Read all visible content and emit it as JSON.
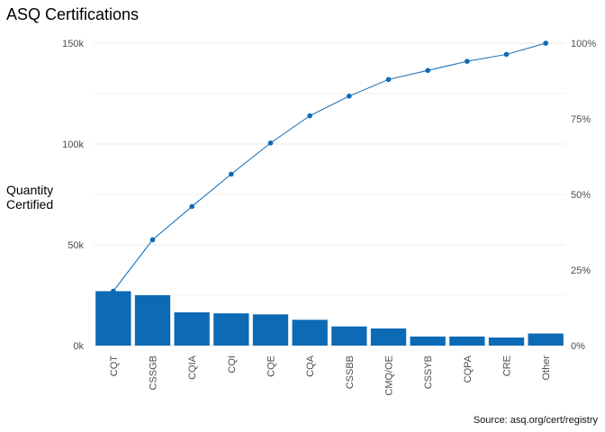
{
  "chart_data": {
    "type": "bar",
    "title": "ASQ Certifications",
    "ylabel": "Quantity\nCertified",
    "y2label": "",
    "caption": "Source: asq.org/cert/registry",
    "categories": [
      "CQT",
      "CSSGB",
      "CQIA",
      "CQI",
      "CQE",
      "CQA",
      "CSSBB",
      "CMQ/OE",
      "CSSYB",
      "CQPA",
      "CRE",
      "Other"
    ],
    "series": [
      {
        "type": "bar",
        "values": [
          27000,
          25000,
          16500,
          16000,
          15500,
          12800,
          9500,
          8500,
          4500,
          4500,
          4000,
          6000
        ]
      },
      {
        "type": "line",
        "axis": "right",
        "values": [
          18,
          35,
          46,
          56.7,
          67,
          76,
          82.5,
          88,
          91,
          94,
          96.3,
          100
        ]
      }
    ],
    "ylim": [
      0,
      150000
    ],
    "y2lim": [
      0,
      100
    ],
    "yticks": [
      "0k",
      "50k",
      "100k",
      "150k"
    ],
    "y2ticks": [
      "0%",
      "25%",
      "50%",
      "75%",
      "100%"
    ],
    "grid": true,
    "colors": {
      "bar": "#0D6AB5",
      "line": "#0D6AB5",
      "point": "#0D6AB5",
      "grid": "#EBEBEB",
      "background": "#FFFFFF"
    }
  }
}
